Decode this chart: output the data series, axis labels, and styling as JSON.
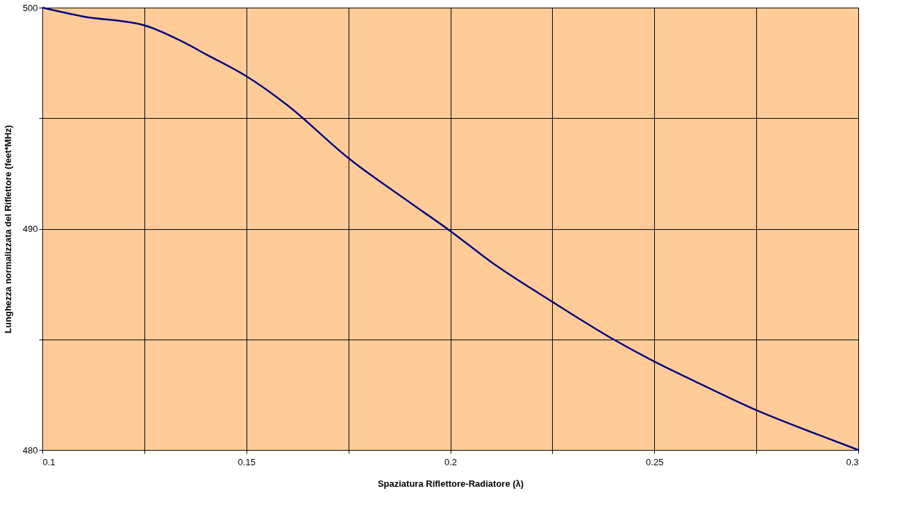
{
  "chart_data": {
    "type": "line",
    "xlabel": "Spaziatura Riflettore-Radiatore (λ)",
    "ylabel": "Lunghezza normalizzata del Riflettore (feet*MHz)",
    "x": [
      0.1,
      0.11,
      0.125,
      0.135,
      0.14,
      0.15,
      0.16,
      0.175,
      0.19,
      0.2,
      0.21,
      0.225,
      0.24,
      0.25,
      0.26,
      0.275,
      0.29,
      0.3
    ],
    "series": [
      {
        "color": "#000080",
        "values": [
          500,
          499.6,
          499.2,
          498.4,
          497.9,
          496.9,
          495.6,
          493.2,
          491.2,
          489.9,
          488.5,
          486.7,
          485,
          484,
          483.1,
          481.8,
          480.7,
          480
        ]
      }
    ],
    "xlim": [
      0.1,
      0.3
    ],
    "ylim": [
      480,
      500
    ],
    "xticks": [
      0.1,
      {
        "value": 0.125,
        "label": null
      },
      0.15,
      {
        "value": 0.175,
        "label": null
      },
      0.2,
      {
        "value": 0.225,
        "label": null
      },
      0.25,
      {
        "value": 0.275,
        "label": null
      },
      0.3
    ],
    "yticks": [
      480,
      {
        "value": 485,
        "label": null
      },
      490,
      {
        "value": 495,
        "label": null
      },
      500
    ],
    "grid": true,
    "marker": "none",
    "line_style": "solid"
  }
}
